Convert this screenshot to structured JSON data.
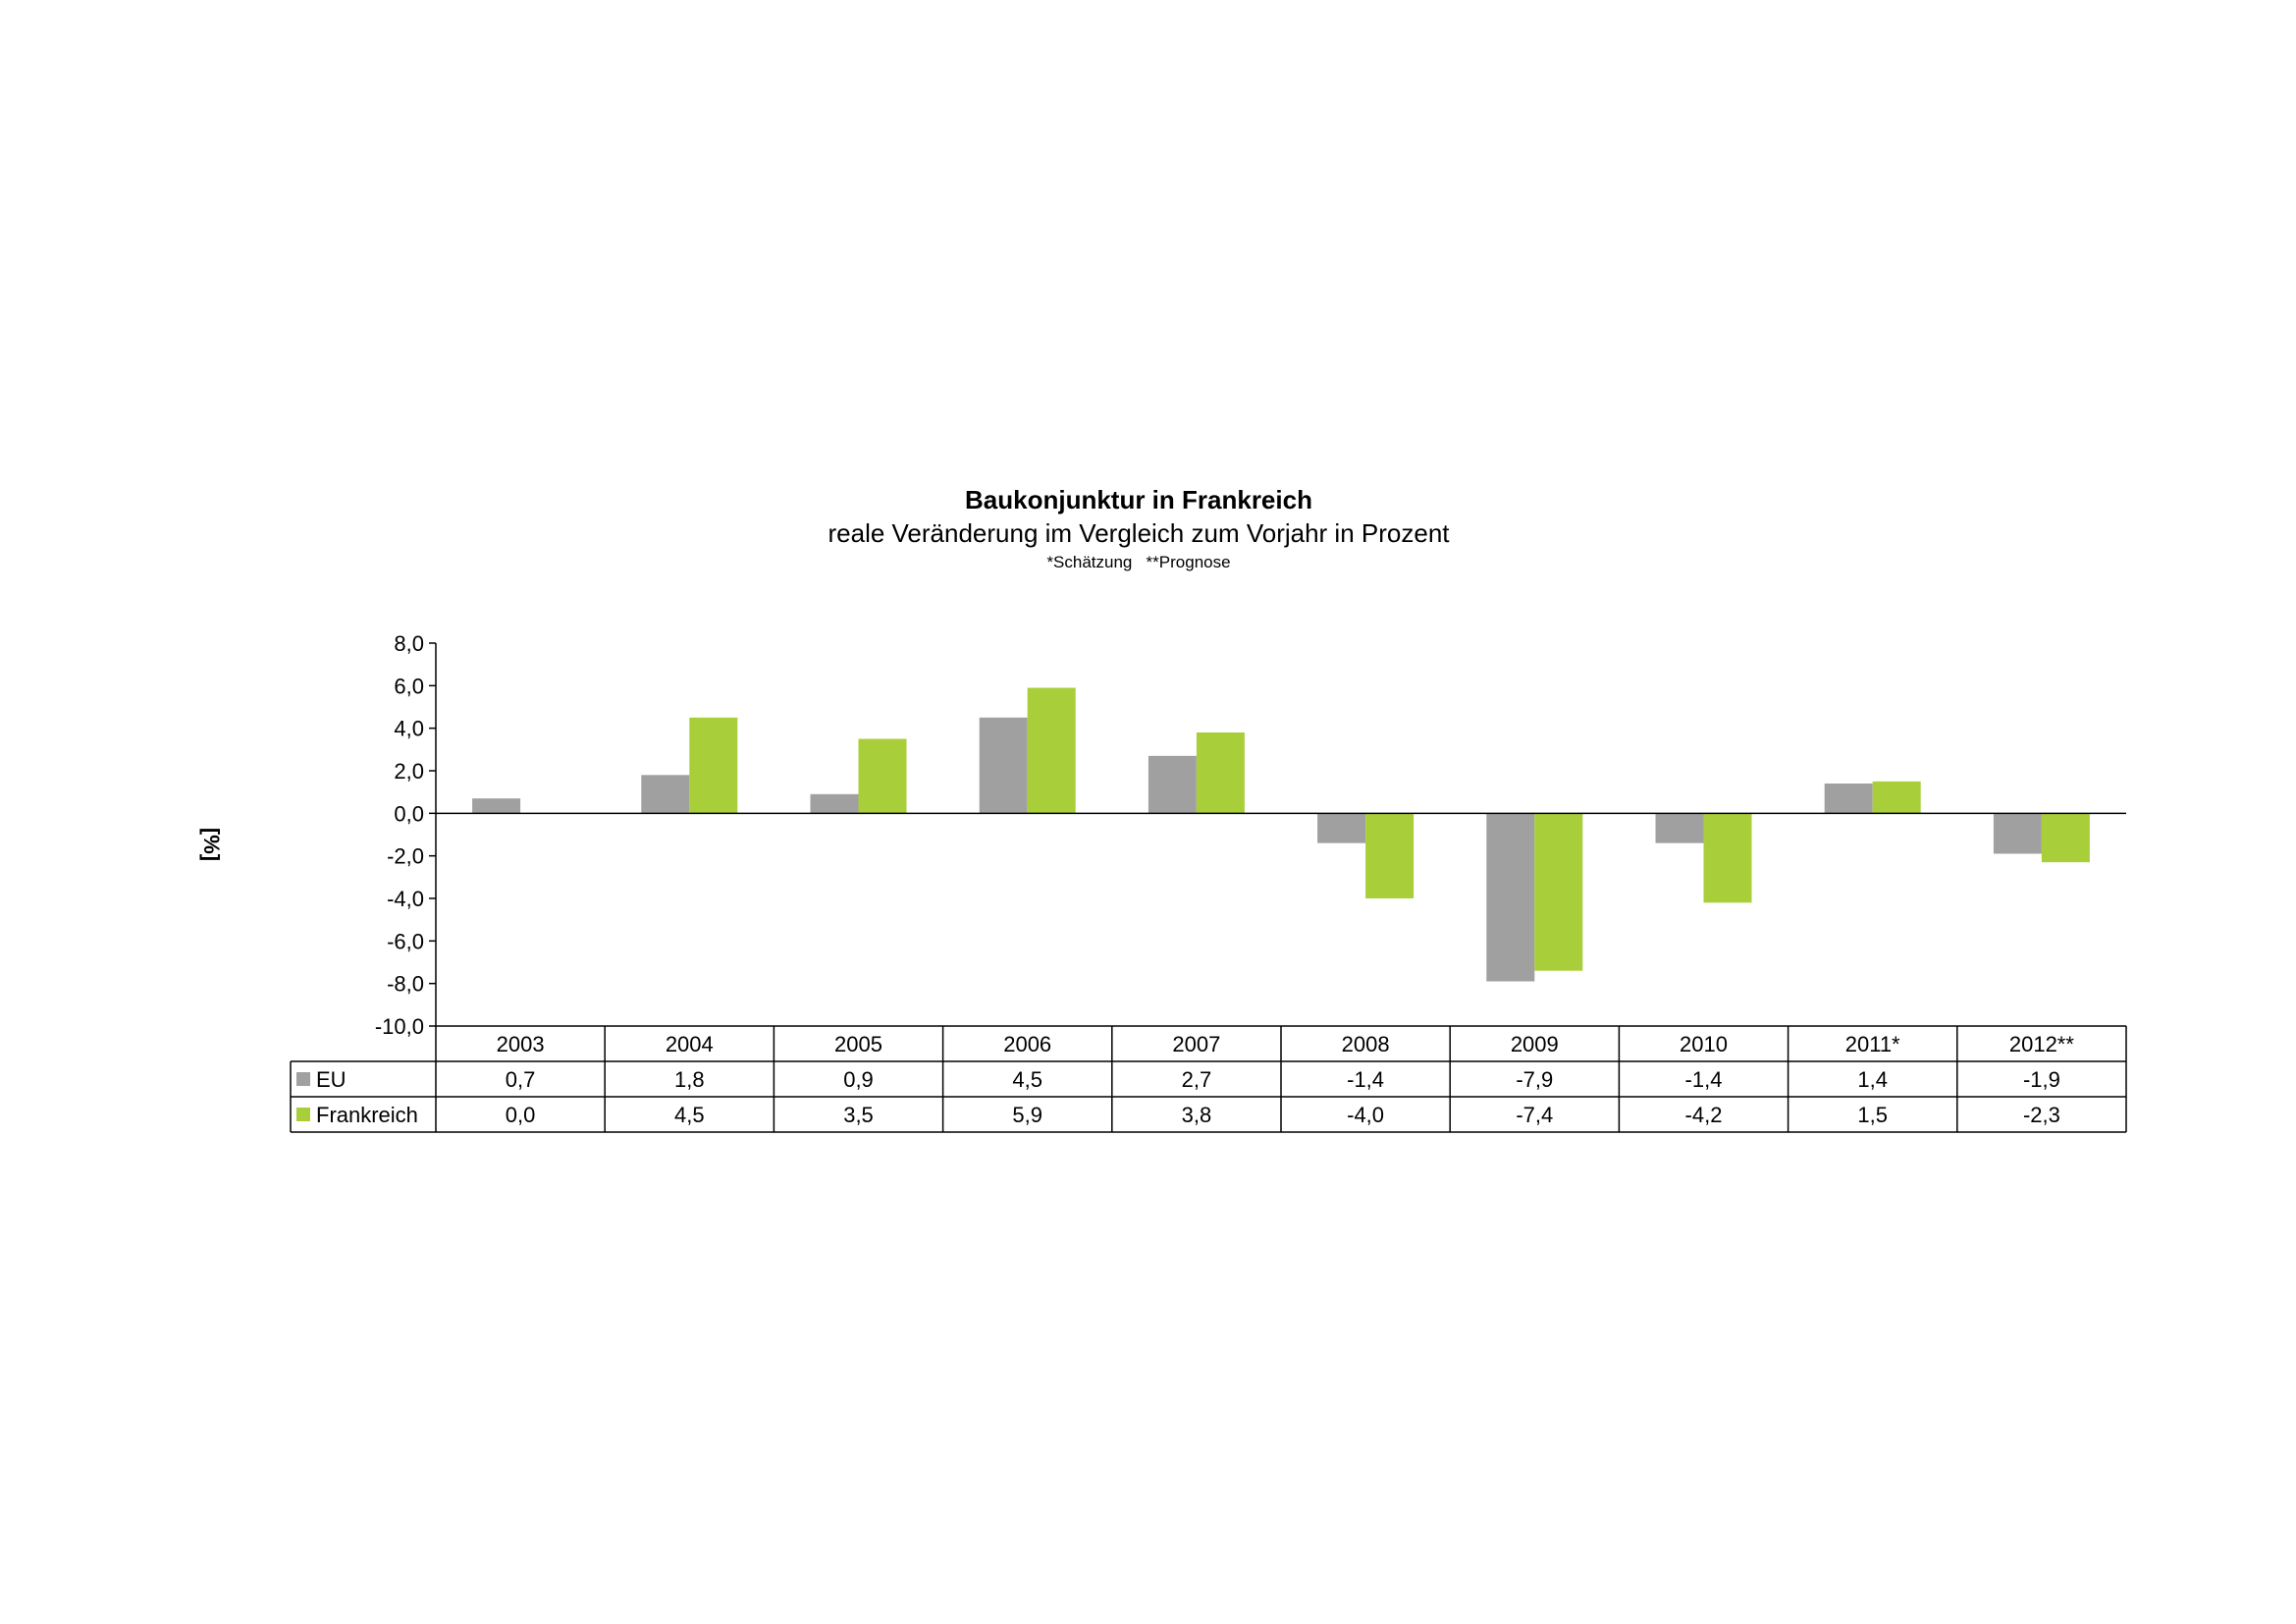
{
  "chart_data": {
    "type": "bar",
    "title": "Baukonjunktur in Frankreich",
    "subtitle": "reale Veränderung im Vergleich zum Vorjahr in Prozent",
    "note": "*Schätzung   **Prognose",
    "ylabel": "[%]",
    "xlabel": "",
    "ylim": [
      -10,
      8
    ],
    "ytick_step": 2,
    "yticks": [
      "8,0",
      "6,0",
      "4,0",
      "2,0",
      "0,0",
      "-2,0",
      "-4,0",
      "-6,0",
      "-8,0",
      "-10,0"
    ],
    "categories": [
      "2003",
      "2004",
      "2005",
      "2006",
      "2007",
      "2008",
      "2009",
      "2010",
      "2011*",
      "2012**"
    ],
    "series": [
      {
        "name": "EU",
        "color": "#a0a0a0",
        "values": [
          0.7,
          1.8,
          0.9,
          4.5,
          2.7,
          -1.4,
          -7.9,
          -1.4,
          1.4,
          -1.9
        ],
        "labels": [
          "0,7",
          "1,8",
          "0,9",
          "4,5",
          "2,7",
          "-1,4",
          "-7,9",
          "-1,4",
          "1,4",
          "-1,9"
        ]
      },
      {
        "name": "Frankreich",
        "color": "#a8cf3a",
        "values": [
          0.0,
          4.5,
          3.5,
          5.9,
          3.8,
          -4.0,
          -7.4,
          -4.2,
          1.5,
          -2.3
        ],
        "labels": [
          "0,0",
          "4,5",
          "3,5",
          "5,9",
          "3,8",
          "-4,0",
          "-7,4",
          "-4,2",
          "1,5",
          "-2,3"
        ]
      }
    ],
    "grid": false,
    "legend": "data-table"
  }
}
